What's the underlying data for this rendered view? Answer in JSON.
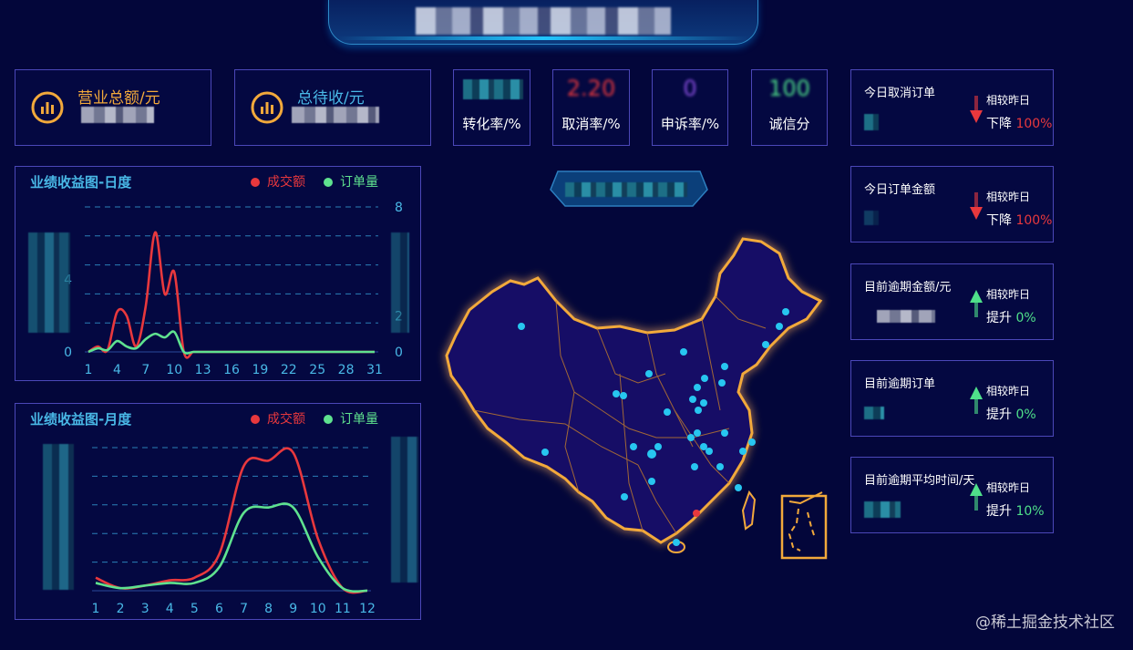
{
  "header": {
    "title": ""
  },
  "top_kpis": {
    "revenue": {
      "label": "营业总额/元",
      "icon": "bar-chart-icon"
    },
    "pending": {
      "label": "总待收/元",
      "icon": "bar-chart-icon"
    },
    "metrics": [
      {
        "label": "转化率/%",
        "value": "",
        "color": "#2fb9d3"
      },
      {
        "label": "取消率/%",
        "value": "2.20",
        "color": "#e8383d"
      },
      {
        "label": "申诉率/%",
        "value": "0",
        "color": "#8a4fe0"
      },
      {
        "label": "诚信分",
        "value": "100",
        "color": "#4fe08a"
      }
    ]
  },
  "right_cards": [
    {
      "title": "今日取消订单",
      "compare_label": "相较昨日",
      "trend_text": "下降",
      "trend_value": "100%",
      "direction": "down"
    },
    {
      "title": "今日订单金额",
      "compare_label": "相较昨日",
      "trend_text": "下降",
      "trend_value": "100%",
      "direction": "down"
    },
    {
      "title": "目前逾期金额/元",
      "compare_label": "相较昨日",
      "trend_text": "提升",
      "trend_value": "0%",
      "direction": "up"
    },
    {
      "title": "目前逾期订单",
      "compare_label": "相较昨日",
      "trend_text": "提升",
      "trend_value": "0%",
      "direction": "up"
    },
    {
      "title": "目前逾期平均时间/天",
      "compare_label": "相较昨日",
      "trend_text": "提升",
      "trend_value": "10%",
      "direction": "up"
    }
  ],
  "colors": {
    "down": "#e8383d",
    "up": "#4fe08a",
    "accent": "#49b8e6",
    "border": "#4b47b8",
    "map_border": "#f2a93b"
  },
  "chart_data": [
    {
      "type": "line",
      "title": "业绩收益图-日度",
      "legend": [
        "成交额",
        "订单量"
      ],
      "x_tick_labels": [
        "1",
        "4",
        "7",
        "10",
        "13",
        "16",
        "19",
        "22",
        "25",
        "28",
        "31"
      ],
      "y_tick_labels_left": [
        "0",
        "4"
      ],
      "y_tick_labels_right": [
        "0",
        "2",
        "8"
      ],
      "x": [
        1,
        2,
        3,
        4,
        5,
        6,
        7,
        8,
        9,
        10,
        11,
        12,
        13,
        14,
        15,
        16,
        17,
        18,
        19,
        20,
        21,
        22,
        23,
        24,
        25,
        26,
        27,
        28,
        29,
        30,
        31
      ],
      "series": [
        {
          "name": "成交额",
          "color": "#e8383d",
          "values": [
            0,
            0.3,
            0.1,
            2.2,
            2.0,
            0.3,
            2.5,
            6.6,
            3.2,
            4.4,
            0,
            0,
            0,
            0,
            0,
            0,
            0,
            0,
            0,
            0,
            0,
            0,
            0,
            0,
            0,
            0,
            0,
            0,
            0,
            0,
            0
          ]
        },
        {
          "name": "订单量",
          "color": "#5fe28f",
          "values": [
            0,
            0.2,
            0.1,
            0.6,
            0.3,
            0.2,
            0.7,
            1.0,
            0.8,
            1.1,
            0,
            0,
            0,
            0,
            0,
            0,
            0,
            0,
            0,
            0,
            0,
            0,
            0,
            0,
            0,
            0,
            0,
            0,
            0,
            0,
            0
          ]
        }
      ],
      "ylim": [
        0,
        8
      ]
    },
    {
      "type": "line",
      "title": "业绩收益图-月度",
      "legend": [
        "成交额",
        "订单量"
      ],
      "x_tick_labels": [
        "1",
        "2",
        "3",
        "4",
        "5",
        "6",
        "7",
        "8",
        "9",
        "10",
        "11",
        "12"
      ],
      "x": [
        1,
        2,
        3,
        4,
        5,
        6,
        7,
        8,
        9,
        10,
        11,
        12
      ],
      "series": [
        {
          "name": "成交额",
          "color": "#e8383d",
          "values": [
            0.5,
            0.1,
            0.2,
            0.4,
            0.5,
            1.4,
            4.8,
            5.0,
            5.3,
            2.0,
            0.1,
            0
          ]
        },
        {
          "name": "订单量",
          "color": "#5fe28f",
          "values": [
            0.3,
            0.1,
            0.2,
            0.3,
            0.3,
            0.9,
            3.0,
            3.2,
            3.2,
            1.3,
            0.1,
            0
          ]
        }
      ],
      "ylim": [
        0,
        5.5
      ]
    }
  ],
  "watermark": "@稀土掘金技术社区"
}
